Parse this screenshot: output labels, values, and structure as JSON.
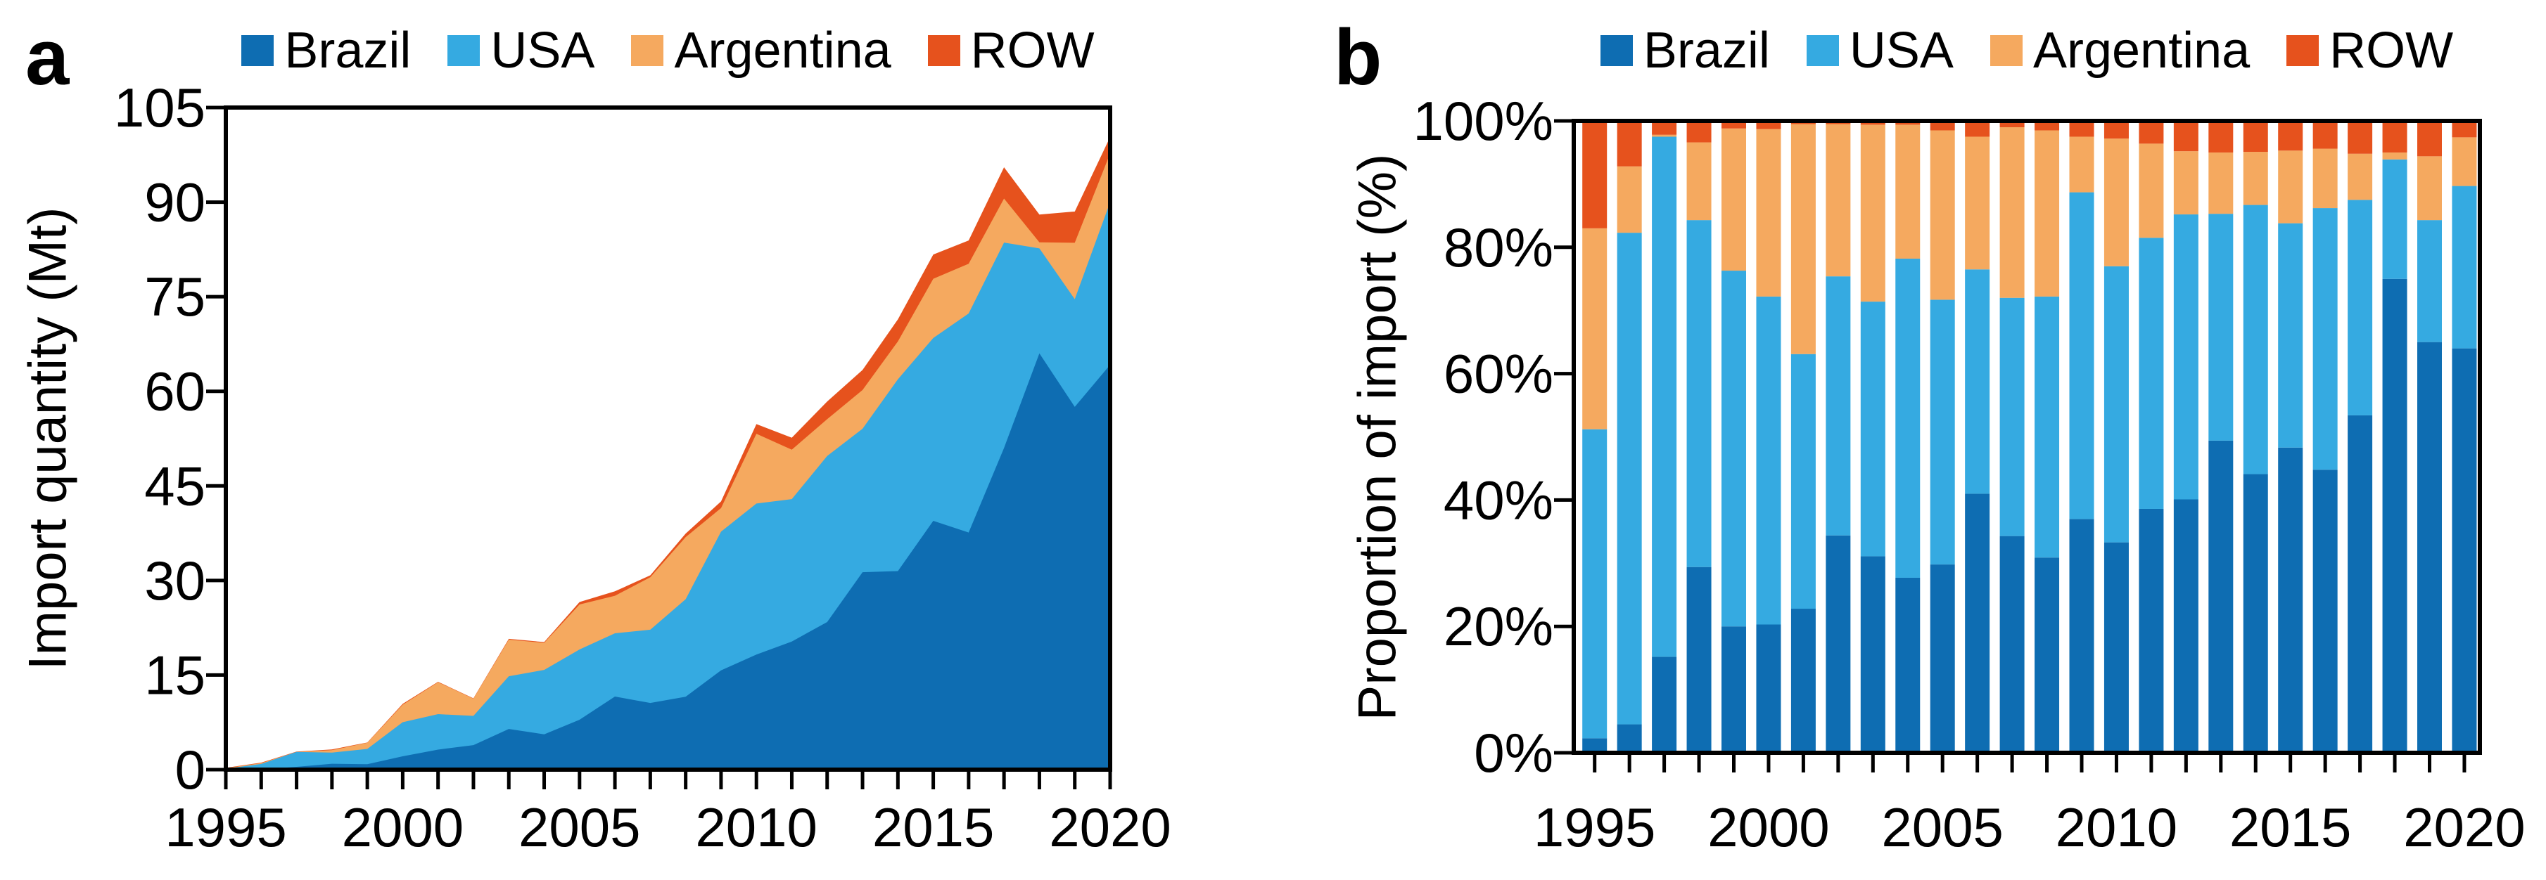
{
  "figure": {
    "panel_a_letter": "a",
    "panel_b_letter": "b"
  },
  "colors": {
    "brazil": "#0E6DB2",
    "usa": "#35AAE1",
    "argentina": "#F5A95F",
    "row": "#E6521D",
    "axis": "#000000",
    "background": "#FFFFFF"
  },
  "legend": {
    "items": [
      {
        "label": "Brazil",
        "color": "brazil"
      },
      {
        "label": "USA",
        "color": "usa"
      },
      {
        "label": "Argentina",
        "color": "argentina"
      },
      {
        "label": "ROW",
        "color": "row"
      }
    ]
  },
  "chart_data": [
    {
      "panel": "a",
      "type": "area",
      "stacked": true,
      "title": "",
      "xlabel": "",
      "ylabel": "Import quantity (Mt)",
      "ylim": [
        0,
        105
      ],
      "yticks": [
        0,
        15,
        30,
        45,
        60,
        75,
        90,
        105
      ],
      "ytick_suffix": "",
      "grid": false,
      "legend_position": "top",
      "x": [
        1995,
        1996,
        1997,
        1998,
        1999,
        2000,
        2001,
        2002,
        2003,
        2004,
        2005,
        2006,
        2007,
        2008,
        2009,
        2010,
        2011,
        2012,
        2013,
        2014,
        2015,
        2016,
        2017,
        2018,
        2019,
        2020
      ],
      "xtick_labels": [
        1995,
        2000,
        2005,
        2010,
        2015,
        2020
      ],
      "series": [
        {
          "name": "Brazil",
          "color": "brazil",
          "values": [
            0.01,
            0.05,
            0.44,
            0.94,
            0.86,
            2.12,
            3.18,
            3.89,
            6.45,
            5.6,
            7.92,
            11.59,
            10.57,
            11.57,
            15.74,
            18.25,
            20.32,
            23.41,
            31.31,
            31.49,
            39.46,
            37.6,
            51.01,
            66.02,
            57.53,
            64.21
          ]
        },
        {
          "name": "USA",
          "color": "usa",
          "values": [
            0.14,
            0.86,
            2.37,
            1.76,
            2.43,
            5.41,
            5.62,
            4.64,
            8.36,
            10.22,
            11.14,
            10.04,
            11.62,
            15.46,
            22.0,
            23.95,
            22.58,
            26.33,
            22.75,
            30.42,
            29.0,
            34.74,
            32.58,
            16.64,
            17.08,
            25.78
          ]
        },
        {
          "name": "Argentina",
          "color": "argentina",
          "values": [
            0.09,
            0.12,
            0.01,
            0.39,
            0.97,
            2.76,
            5.07,
            2.73,
            5.81,
            4.29,
            7.13,
            5.94,
            8.32,
            9.85,
            3.74,
            11.07,
            7.84,
            5.84,
            6.15,
            6.0,
            9.39,
            7.89,
            6.97,
            0.97,
            8.94,
            7.73
          ]
        },
        {
          "name": "ROW",
          "color": "row",
          "values": [
            0.05,
            0.08,
            0.05,
            0.11,
            0.05,
            0.14,
            0.07,
            0.06,
            0.12,
            0.12,
            0.4,
            0.71,
            0.31,
            0.56,
            1.06,
            1.53,
            1.9,
            2.8,
            3.17,
            3.5,
            3.84,
            3.69,
            4.97,
            4.4,
            4.96,
            2.61
          ]
        }
      ]
    },
    {
      "panel": "b",
      "type": "bar",
      "stacked": true,
      "percent": true,
      "title": "",
      "xlabel": "",
      "ylabel": "Proportion of import (%)",
      "ylim": [
        0,
        100
      ],
      "yticks": [
        0,
        20,
        40,
        60,
        80,
        100
      ],
      "ytick_suffix": "%",
      "grid": false,
      "legend_position": "top",
      "x": [
        1995,
        1996,
        1997,
        1998,
        1999,
        2000,
        2001,
        2002,
        2003,
        2004,
        2005,
        2006,
        2007,
        2008,
        2009,
        2010,
        2011,
        2012,
        2013,
        2014,
        2015,
        2016,
        2017,
        2018,
        2019,
        2020
      ],
      "xtick_labels": [
        1995,
        2000,
        2005,
        2010,
        2015,
        2020
      ],
      "series": [
        {
          "name": "Brazil",
          "color": "brazil",
          "values": [
            2.3,
            4.5,
            15.2,
            29.4,
            20.0,
            20.3,
            22.8,
            34.4,
            31.1,
            27.7,
            29.8,
            41.0,
            34.3,
            30.9,
            37.0,
            33.3,
            38.6,
            40.1,
            49.4,
            44.1,
            48.3,
            44.8,
            53.4,
            75.0,
            65.0,
            64.0
          ]
        },
        {
          "name": "USA",
          "color": "usa",
          "values": [
            48.9,
            77.8,
            82.3,
            54.9,
            56.3,
            51.9,
            40.3,
            41.0,
            40.3,
            50.5,
            41.9,
            35.5,
            37.7,
            41.3,
            51.7,
            43.7,
            42.9,
            45.1,
            35.9,
            42.6,
            35.5,
            41.4,
            34.1,
            18.9,
            19.3,
            25.7
          ]
        },
        {
          "name": "Argentina",
          "color": "argentina",
          "values": [
            31.8,
            10.5,
            0.3,
            12.3,
            22.5,
            26.5,
            36.4,
            24.1,
            28.0,
            21.2,
            26.8,
            21.0,
            27.0,
            26.3,
            8.8,
            20.2,
            14.9,
            10.0,
            9.7,
            8.4,
            11.5,
            9.4,
            7.3,
            1.1,
            10.1,
            7.7
          ]
        },
        {
          "name": "ROW",
          "color": "row",
          "values": [
            17.0,
            7.2,
            2.2,
            3.4,
            1.2,
            1.3,
            0.5,
            0.5,
            0.6,
            0.6,
            1.5,
            2.5,
            1.0,
            1.5,
            2.5,
            2.8,
            3.6,
            4.8,
            5.0,
            4.9,
            4.7,
            4.4,
            5.2,
            5.0,
            5.6,
            2.6
          ]
        }
      ]
    }
  ]
}
